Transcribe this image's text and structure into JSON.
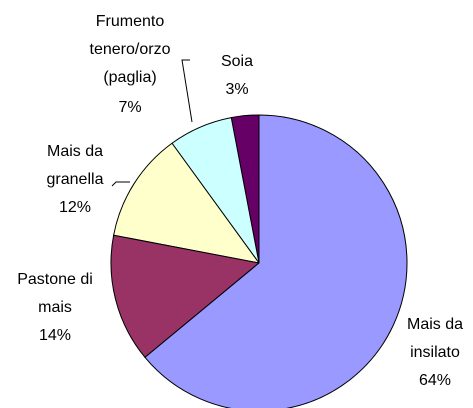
{
  "chart_data": {
    "type": "pie",
    "categories": [
      "Mais da insilato",
      "Pastone di mais",
      "Mais da granella",
      "Frumento tenero/orzo (paglia)",
      "Soia"
    ],
    "values": [
      64,
      14,
      12,
      7,
      3
    ],
    "value_labels": [
      "64%",
      "14%",
      "12%",
      "7%",
      "3%"
    ],
    "colors": [
      "#9999ff",
      "#993366",
      "#ffffcc",
      "#ccffff",
      "#660066"
    ]
  }
}
